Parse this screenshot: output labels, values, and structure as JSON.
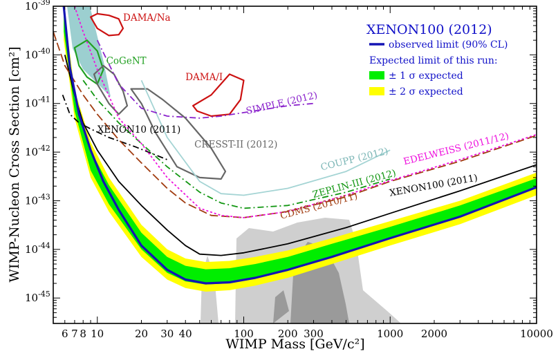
{
  "chart_data": {
    "type": "line",
    "title": "",
    "xlabel": "WIMP Mass [GeV/c²]",
    "ylabel": "WIMP-Nucleon Cross Section [cm²]",
    "x_scale": "log",
    "y_scale": "log",
    "xlim": [
      5,
      10000
    ],
    "ylim": [
      3e-46,
      1e-39
    ],
    "x_ticks": [
      {
        "value": 6,
        "label": "6"
      },
      {
        "value": 7,
        "label": "7"
      },
      {
        "value": 8,
        "label": "8"
      },
      {
        "value": 10,
        "label": "10"
      },
      {
        "value": 20,
        "label": "20"
      },
      {
        "value": 30,
        "label": "30"
      },
      {
        "value": 40,
        "label": "40"
      },
      {
        "value": 100,
        "label": "100"
      },
      {
        "value": 200,
        "label": "200"
      },
      {
        "value": 300,
        "label": "300"
      },
      {
        "value": 1000,
        "label": "1000"
      },
      {
        "value": 2000,
        "label": "2000"
      },
      {
        "value": 10000,
        "label": "10000"
      }
    ],
    "y_ticks": [
      {
        "value": 1e-45,
        "base": "10",
        "exp": "-45"
      },
      {
        "value": 1e-44,
        "base": "10",
        "exp": "-44"
      },
      {
        "value": 1e-43,
        "base": "10",
        "exp": "-43"
      },
      {
        "value": 1e-42,
        "base": "10",
        "exp": "-42"
      },
      {
        "value": 1e-41,
        "base": "10",
        "exp": "-41"
      },
      {
        "value": 1e-40,
        "base": "10",
        "exp": "-40"
      },
      {
        "value": 1e-39,
        "base": "10",
        "exp": "-39"
      }
    ],
    "legend": {
      "position": "top-right",
      "title": "XENON100 (2012)",
      "observed": "observed limit (90% CL)",
      "expected_header": "Expected limit of this run:",
      "band1": "± 1 σ expected",
      "band2": "± 2 σ expected"
    },
    "colors": {
      "observed": "#1414b4",
      "band1": "#00ee00",
      "band2": "#ffff00",
      "theory_light": "#cfcfcf",
      "theory_dark": "#9a9a9a",
      "cogent_fill": "#9ccfd0",
      "xenon100_2011": "#000000",
      "xenon10": "#000000",
      "cdms": "#a13c10",
      "zeplin": "#119611",
      "edelweiss": "#ee10dd",
      "coupp": "#a4d4d4",
      "simple": "#8a22cc",
      "cresst": "#666666",
      "dama": "#cc1111",
      "cogent": "#22a022",
      "legend_text": "#1010c8"
    },
    "series": [
      {
        "name": "observed limit (90% CL)",
        "style": "solid",
        "x": [
          5.9,
          6.5,
          7.5,
          9,
          11,
          14,
          20,
          30,
          40,
          55,
          80,
          120,
          200,
          400,
          1000,
          3000,
          10000
        ],
        "y": [
          1e-39,
          5.5e-41,
          6e-42,
          1.1e-42,
          2.5e-43,
          6.5e-44,
          1.2e-44,
          3.8e-45,
          2.4e-45,
          2e-45,
          2.1e-45,
          2.6e-45,
          3.8e-45,
          7e-45,
          1.7e-44,
          4.7e-44,
          1.9e-43
        ]
      },
      {
        "name": "± 2 σ expected",
        "band": true,
        "x": [
          5.9,
          7,
          9,
          12,
          20,
          30,
          40,
          55,
          80,
          120,
          200,
          400,
          1000,
          3000,
          10000
        ],
        "low": [
          2e-40,
          5e-42,
          3e-43,
          6e-44,
          7e-45,
          2.4e-45,
          1.6e-45,
          1.35e-45,
          1.45e-45,
          1.8e-45,
          2.6e-45,
          5e-45,
          1.2e-44,
          3.3e-44,
          1.3e-43
        ],
        "high": [
          1e-39,
          1.9e-41,
          1.6e-42,
          3e-43,
          3.2e-44,
          1e-44,
          6.5e-45,
          5.5e-45,
          5.8e-45,
          7e-45,
          9.5e-45,
          1.7e-44,
          3.8e-44,
          1e-43,
          3.8e-43
        ]
      },
      {
        "name": "± 1 σ expected",
        "band": true,
        "x": [
          5.9,
          7,
          9,
          12,
          20,
          30,
          40,
          55,
          80,
          120,
          200,
          400,
          1000,
          3000,
          10000
        ],
        "low": [
          3e-40,
          7e-42,
          4.2e-43,
          8.5e-44,
          1e-44,
          3.3e-45,
          2.2e-45,
          1.9e-45,
          2e-45,
          2.5e-45,
          3.6e-45,
          6.8e-45,
          1.65e-44,
          4.6e-44,
          1.8e-43
        ],
        "high": [
          1e-39,
          1.3e-41,
          1.1e-42,
          2.1e-43,
          2.2e-44,
          7e-45,
          4.6e-45,
          3.9e-45,
          4.1e-45,
          5e-45,
          7e-45,
          1.3e-44,
          2.9e-44,
          8e-44,
          2.9e-43
        ]
      },
      {
        "name": "XENON100 (2011)",
        "style": "solid",
        "x": [
          6,
          7,
          8,
          10,
          14,
          20,
          30,
          40,
          50,
          70,
          100,
          200,
          500,
          1000,
          3000,
          10000
        ],
        "y": [
          1e-40,
          1.5e-41,
          4e-42,
          1.1e-42,
          2.5e-43,
          8e-44,
          2.5e-44,
          1.2e-44,
          8e-45,
          7.5e-45,
          8.5e-45,
          1.3e-44,
          2.8e-44,
          5.5e-44,
          1.6e-43,
          5.5e-43
        ]
      },
      {
        "name": "XENON10 (2011)",
        "style": "dashdot",
        "x": [
          5.8,
          6.5,
          7.5,
          9,
          12,
          18,
          30
        ],
        "y": [
          1.5e-41,
          6e-42,
          4e-42,
          3e-42,
          2e-42,
          1.3e-42,
          7e-43
        ]
      },
      {
        "name": "CDMS (2010/11)",
        "style": "longdash",
        "x": [
          5,
          6,
          8,
          10,
          14,
          20,
          30,
          40,
          60,
          100,
          200,
          500,
          1000,
          3000,
          10000
        ],
        "y": [
          3e-40,
          6e-41,
          1.5e-41,
          6e-42,
          1.8e-42,
          6e-43,
          1.8e-43,
          9e-44,
          5e-44,
          4.5e-44,
          6e-44,
          1.2e-43,
          2.5e-43,
          6.5e-43,
          2.2e-42
        ]
      },
      {
        "name": "ZEPLIN-III (2012)",
        "style": "dashdot",
        "x": [
          8,
          10,
          14,
          20,
          30,
          50,
          70,
          100,
          200,
          500,
          1000
        ],
        "y": [
          3e-41,
          1.2e-41,
          4e-42,
          1.5e-42,
          5e-43,
          1.5e-43,
          9e-44,
          7e-44,
          8e-44,
          1.5e-43,
          2.8e-43
        ]
      },
      {
        "name": "EDELWEISS (2011/12)",
        "style": "dotted",
        "x": [
          7,
          8,
          10,
          14,
          20,
          30,
          50,
          70,
          100,
          200,
          500,
          1000,
          3000,
          10000
        ],
        "y": [
          1e-39,
          3e-40,
          5e-41,
          5e-42,
          1.5e-42,
          3e-43,
          7e-44,
          5e-44,
          4.5e-44,
          6e-44,
          1.3e-43,
          2.6e-43,
          7e-43,
          2.3e-42
        ]
      },
      {
        "name": "COUPP (2012)",
        "style": "solid",
        "x": [
          20,
          30,
          50,
          70,
          100,
          200,
          500,
          1000
        ],
        "y": [
          3e-41,
          2e-42,
          2.5e-43,
          1.4e-43,
          1.3e-43,
          1.8e-43,
          4e-43,
          1.1e-42
        ]
      },
      {
        "name": "SIMPLE (2012)",
        "style": "dashdot",
        "x": [
          10,
          14,
          20,
          30,
          50,
          70,
          100,
          200,
          300
        ],
        "y": [
          2e-40,
          2.5e-41,
          8e-42,
          5.5e-42,
          5e-42,
          5.5e-42,
          6.5e-42,
          9e-42,
          1e-41
        ]
      }
    ],
    "regions": [
      {
        "name": "DAMA/Na",
        "color": "#cc1111",
        "x": [
          9,
          10,
          12,
          14,
          15,
          14,
          12,
          10,
          9
        ],
        "y": [
          6e-40,
          3.5e-40,
          2.5e-40,
          2.6e-40,
          3.5e-40,
          5.5e-40,
          6.5e-40,
          7e-40,
          6e-40
        ]
      },
      {
        "name": "DAMA/I",
        "color": "#cc1111",
        "x": [
          45,
          60,
          80,
          100,
          95,
          80,
          60,
          48,
          45
        ],
        "y": [
          9e-42,
          1.5e-41,
          4e-41,
          3e-41,
          1.2e-41,
          6e-42,
          5.5e-42,
          7e-42,
          9e-42
        ]
      },
      {
        "name": "CoGeNT",
        "color": "#22a022",
        "x": [
          7,
          8.5,
          10,
          11,
          10,
          8.5,
          7.5,
          7
        ],
        "y": [
          1.4e-40,
          2e-40,
          1.2e-40,
          5e-41,
          2.5e-41,
          3.5e-41,
          6e-41,
          1.4e-40
        ]
      },
      {
        "name": "CRESST-II (2012)",
        "color": "#666666",
        "x": [
          17,
          20,
          25,
          35,
          50,
          70,
          75,
          60,
          40,
          28,
          22,
          17
        ],
        "y": [
          2e-41,
          1e-41,
          2.5e-42,
          5e-43,
          3e-43,
          2.8e-43,
          4e-43,
          1.2e-42,
          5e-42,
          1.2e-41,
          2e-41,
          2e-41
        ]
      },
      {
        "name": "CRESST-II (2012)",
        "color": "#666666",
        "x": [
          9.5,
          11,
          13,
          15,
          16,
          14,
          12,
          10,
          9.5
        ],
        "y": [
          4e-41,
          6e-41,
          4e-41,
          1.8e-41,
          9e-42,
          6e-42,
          1e-41,
          2.5e-41,
          4e-41
        ]
      }
    ],
    "labels": [
      {
        "text": "DAMA/Na",
        "x": 15,
        "y": 5e-40,
        "color": "#cc1111"
      },
      {
        "text": "CoGeNT",
        "x": 11.5,
        "y": 6.5e-41,
        "color": "#22a022"
      },
      {
        "text": "DAMA/I",
        "x": 40,
        "y": 3e-41,
        "color": "#cc1111"
      },
      {
        "text": "SIMPLE (2012)",
        "x": 105,
        "y": 6e-42,
        "color": "#8a22cc",
        "rot": -13
      },
      {
        "text": "XENON10 (2011)",
        "x": 10,
        "y": 2.5e-42,
        "color": "#000000"
      },
      {
        "text": "CRESST-II (2012)",
        "x": 46,
        "y": 1.25e-42,
        "color": "#666666"
      },
      {
        "text": "COUPP (2012)",
        "x": 340,
        "y": 4.2e-43,
        "color": "#7ab5b5",
        "rot": -14
      },
      {
        "text": "EDELWEISS (2011/12)",
        "x": 1250,
        "y": 5.5e-43,
        "color": "#ee10dd",
        "rot": -14
      },
      {
        "text": "ZEPLIN-III (2012)",
        "x": 300,
        "y": 1.15e-43,
        "color": "#119611",
        "rot": -15
      },
      {
        "text": "XENON100 (2011)",
        "x": 1000,
        "y": 1.25e-43,
        "color": "#000000",
        "rot": -10
      },
      {
        "text": "CDMS (2010/11)",
        "x": 180,
        "y": 4.2e-44,
        "color": "#a13c10",
        "rot": -15
      }
    ]
  }
}
